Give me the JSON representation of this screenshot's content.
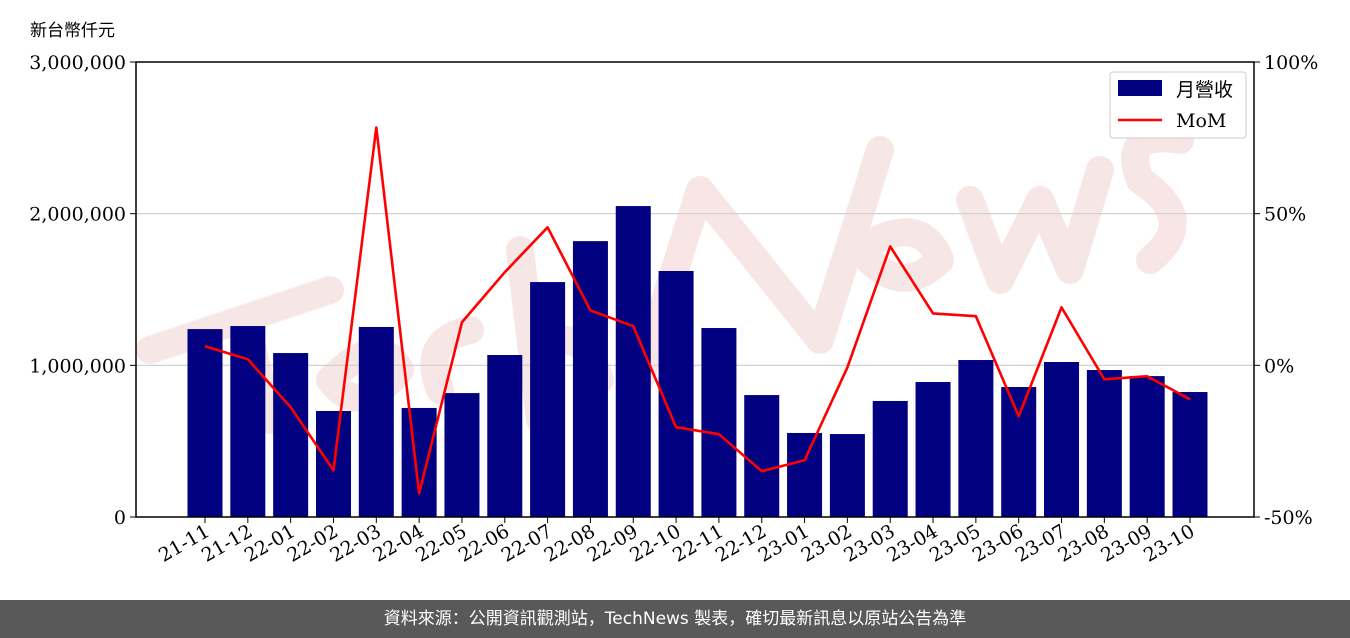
{
  "watermark": "TechNews",
  "footer": "資料來源：公開資訊觀測站，TechNews 製表，確切最新訊息以原站公告為準",
  "chart_data": {
    "type": "bar",
    "left_axis_unit": "新台幣仟元",
    "categories": [
      "21-11",
      "21-12",
      "22-01",
      "22-02",
      "22-03",
      "22-04",
      "22-05",
      "22-06",
      "22-07",
      "22-08",
      "22-09",
      "22-10",
      "22-11",
      "22-12",
      "23-01",
      "23-02",
      "23-03",
      "23-04",
      "23-05",
      "23-06",
      "23-07",
      "23-08",
      "23-09",
      "23-10"
    ],
    "series": [
      {
        "name": "月營收",
        "type": "bar",
        "axis": "left",
        "color": "#000080",
        "values": [
          1239000,
          1259000,
          1081000,
          699000,
          1253000,
          719000,
          817000,
          1068000,
          1549000,
          1819000,
          2050000,
          1622000,
          1246000,
          804000,
          554000,
          547000,
          765000,
          890000,
          1035000,
          857000,
          1022000,
          969000,
          929000,
          824000
        ]
      },
      {
        "name": "MoM",
        "type": "line",
        "axis": "right",
        "color": "#ff0000",
        "values": [
          6.3,
          2.0,
          -13.8,
          -34.6,
          78.4,
          -42.2,
          14.2,
          30.7,
          45.5,
          18.1,
          12.9,
          -20.4,
          -22.7,
          -34.9,
          -31.3,
          -0.7,
          39.2,
          17.1,
          16.2,
          -16.8,
          19.1,
          -4.6,
          -3.6,
          -11.2
        ]
      }
    ],
    "left_ylim": [
      0,
      3000000
    ],
    "left_ticks": [
      "0",
      "1,000,000",
      "2,000,000",
      "3,000,000"
    ],
    "right_ylim": [
      -50,
      100
    ],
    "right_ticks": [
      "-50%",
      "0%",
      "50%",
      "100%"
    ],
    "grid": "horizontal",
    "legend": "top-right"
  }
}
